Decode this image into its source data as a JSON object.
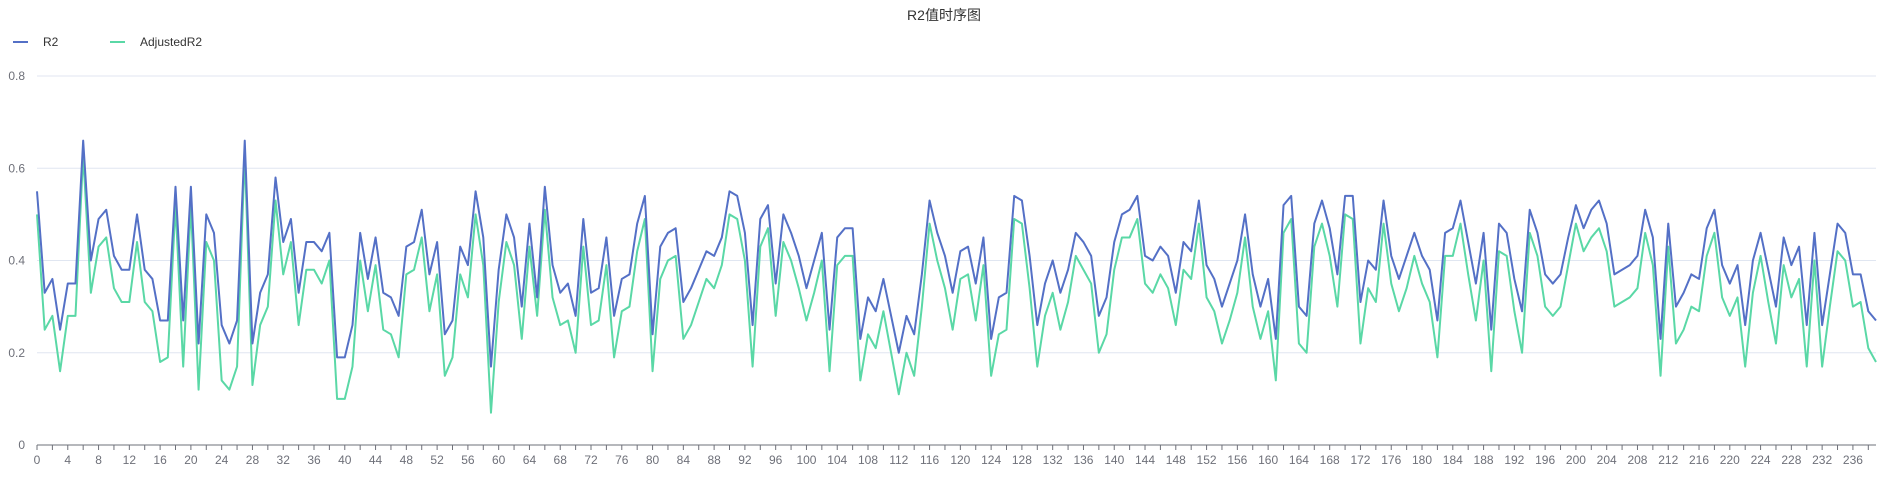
{
  "chart_data": {
    "type": "line",
    "title": "R2值时序图",
    "legend_position": "top-left",
    "grid": true,
    "xlabel": "",
    "ylabel": "",
    "xlim": [
      0,
      239
    ],
    "ylim": [
      0,
      0.8
    ],
    "yticks": [
      0,
      0.2,
      0.4,
      0.6,
      0.8
    ],
    "ytick_labels": [
      "0",
      "0.2",
      "0.4",
      "0.6",
      "0.8"
    ],
    "xticks": [
      0,
      4,
      8,
      12,
      16,
      20,
      24,
      28,
      32,
      36,
      40,
      44,
      48,
      52,
      56,
      60,
      64,
      68,
      72,
      76,
      80,
      84,
      88,
      92,
      96,
      100,
      104,
      108,
      112,
      116,
      120,
      124,
      128,
      132,
      136,
      140,
      144,
      148,
      152,
      156,
      160,
      164,
      168,
      172,
      176,
      180,
      184,
      188,
      192,
      196,
      200,
      204,
      208,
      212,
      216,
      220,
      224,
      228,
      232,
      236
    ],
    "xtick_labels": [
      "0",
      "4",
      "8",
      "12",
      "16",
      "20",
      "24",
      "28",
      "32",
      "36",
      "40",
      "44",
      "48",
      "52",
      "56",
      "60",
      "64",
      "68",
      "72",
      "76",
      "80",
      "84",
      "88",
      "92",
      "96",
      "100",
      "104",
      "108",
      "112",
      "116",
      "120",
      "124",
      "128",
      "132",
      "136",
      "140",
      "144",
      "148",
      "152",
      "156",
      "160",
      "164",
      "168",
      "172",
      "176",
      "180",
      "184",
      "188",
      "192",
      "196",
      "200",
      "204",
      "208",
      "212",
      "216",
      "220",
      "224",
      "228",
      "232",
      "236"
    ],
    "series": [
      {
        "name": "R2",
        "color": "#5470c6",
        "values": [
          0.55,
          0.33,
          0.36,
          0.25,
          0.35,
          0.35,
          0.66,
          0.4,
          0.49,
          0.51,
          0.41,
          0.38,
          0.38,
          0.5,
          0.38,
          0.36,
          0.27,
          0.27,
          0.56,
          0.27,
          0.56,
          0.22,
          0.5,
          0.46,
          0.26,
          0.22,
          0.27,
          0.66,
          0.22,
          0.33,
          0.37,
          0.58,
          0.44,
          0.49,
          0.33,
          0.44,
          0.44,
          0.42,
          0.46,
          0.19,
          0.19,
          0.26,
          0.46,
          0.36,
          0.45,
          0.33,
          0.32,
          0.28,
          0.43,
          0.44,
          0.51,
          0.37,
          0.44,
          0.24,
          0.27,
          0.43,
          0.39,
          0.55,
          0.45,
          0.17,
          0.38,
          0.5,
          0.45,
          0.3,
          0.48,
          0.32,
          0.56,
          0.39,
          0.33,
          0.35,
          0.28,
          0.49,
          0.33,
          0.34,
          0.45,
          0.28,
          0.36,
          0.37,
          0.48,
          0.54,
          0.24,
          0.43,
          0.46,
          0.47,
          0.31,
          0.34,
          0.38,
          0.42,
          0.41,
          0.45,
          0.55,
          0.54,
          0.46,
          0.26,
          0.49,
          0.52,
          0.35,
          0.5,
          0.46,
          0.41,
          0.34,
          0.4,
          0.46,
          0.25,
          0.45,
          0.47,
          0.47,
          0.23,
          0.32,
          0.29,
          0.36,
          0.28,
          0.2,
          0.28,
          0.24,
          0.37,
          0.53,
          0.46,
          0.41,
          0.33,
          0.42,
          0.43,
          0.35,
          0.45,
          0.23,
          0.32,
          0.33,
          0.54,
          0.53,
          0.41,
          0.26,
          0.35,
          0.4,
          0.33,
          0.38,
          0.46,
          0.44,
          0.41,
          0.28,
          0.32,
          0.44,
          0.5,
          0.51,
          0.54,
          0.41,
          0.4,
          0.43,
          0.41,
          0.33,
          0.44,
          0.42,
          0.53,
          0.39,
          0.36,
          0.3,
          0.35,
          0.4,
          0.5,
          0.37,
          0.3,
          0.36,
          0.23,
          0.52,
          0.54,
          0.3,
          0.28,
          0.48,
          0.53,
          0.47,
          0.37,
          0.54,
          0.54,
          0.31,
          0.4,
          0.38,
          0.53,
          0.41,
          0.36,
          0.41,
          0.46,
          0.41,
          0.38,
          0.27,
          0.46,
          0.47,
          0.53,
          0.44,
          0.35,
          0.46,
          0.25,
          0.48,
          0.46,
          0.36,
          0.29,
          0.51,
          0.46,
          0.37,
          0.35,
          0.37,
          0.45,
          0.52,
          0.47,
          0.51,
          0.53,
          0.48,
          0.37,
          0.38,
          0.39,
          0.41,
          0.51,
          0.45,
          0.23,
          0.48,
          0.3,
          0.33,
          0.37,
          0.36,
          0.47,
          0.51,
          0.39,
          0.35,
          0.39,
          0.26,
          0.4,
          0.46,
          0.38,
          0.3,
          0.45,
          0.39,
          0.43,
          0.26,
          0.46,
          0.26,
          0.37,
          0.48,
          0.46,
          0.37,
          0.37,
          0.29,
          0.27
        ]
      },
      {
        "name": "AdjustedR2",
        "color": "#5ad8a6",
        "values": [
          0.5,
          0.25,
          0.28,
          0.16,
          0.28,
          0.28,
          0.63,
          0.33,
          0.43,
          0.45,
          0.34,
          0.31,
          0.31,
          0.44,
          0.31,
          0.29,
          0.18,
          0.19,
          0.52,
          0.17,
          0.52,
          0.12,
          0.44,
          0.4,
          0.14,
          0.12,
          0.17,
          0.63,
          0.13,
          0.26,
          0.3,
          0.53,
          0.37,
          0.44,
          0.26,
          0.38,
          0.38,
          0.35,
          0.4,
          0.1,
          0.1,
          0.17,
          0.4,
          0.29,
          0.39,
          0.25,
          0.24,
          0.19,
          0.37,
          0.38,
          0.45,
          0.29,
          0.37,
          0.15,
          0.19,
          0.37,
          0.32,
          0.5,
          0.39,
          0.07,
          0.31,
          0.44,
          0.39,
          0.23,
          0.43,
          0.28,
          0.51,
          0.32,
          0.26,
          0.27,
          0.2,
          0.43,
          0.26,
          0.27,
          0.39,
          0.19,
          0.29,
          0.3,
          0.42,
          0.49,
          0.16,
          0.36,
          0.4,
          0.41,
          0.23,
          0.26,
          0.31,
          0.36,
          0.34,
          0.39,
          0.5,
          0.49,
          0.4,
          0.17,
          0.43,
          0.47,
          0.28,
          0.44,
          0.4,
          0.34,
          0.27,
          0.33,
          0.4,
          0.16,
          0.39,
          0.41,
          0.41,
          0.14,
          0.24,
          0.21,
          0.29,
          0.2,
          0.11,
          0.2,
          0.15,
          0.3,
          0.48,
          0.4,
          0.34,
          0.25,
          0.36,
          0.37,
          0.27,
          0.39,
          0.15,
          0.24,
          0.25,
          0.49,
          0.48,
          0.34,
          0.17,
          0.28,
          0.33,
          0.25,
          0.31,
          0.41,
          0.38,
          0.35,
          0.2,
          0.24,
          0.38,
          0.45,
          0.45,
          0.49,
          0.35,
          0.33,
          0.37,
          0.34,
          0.26,
          0.38,
          0.36,
          0.48,
          0.32,
          0.29,
          0.22,
          0.27,
          0.33,
          0.45,
          0.3,
          0.23,
          0.29,
          0.14,
          0.46,
          0.49,
          0.22,
          0.2,
          0.43,
          0.48,
          0.41,
          0.3,
          0.5,
          0.49,
          0.22,
          0.34,
          0.31,
          0.48,
          0.35,
          0.29,
          0.34,
          0.41,
          0.35,
          0.31,
          0.19,
          0.41,
          0.41,
          0.48,
          0.37,
          0.27,
          0.4,
          0.16,
          0.42,
          0.41,
          0.29,
          0.2,
          0.46,
          0.41,
          0.3,
          0.28,
          0.3,
          0.39,
          0.48,
          0.42,
          0.45,
          0.47,
          0.42,
          0.3,
          0.31,
          0.32,
          0.34,
          0.46,
          0.39,
          0.15,
          0.43,
          0.22,
          0.25,
          0.3,
          0.29,
          0.41,
          0.46,
          0.32,
          0.28,
          0.32,
          0.17,
          0.33,
          0.41,
          0.31,
          0.22,
          0.39,
          0.32,
          0.36,
          0.17,
          0.4,
          0.17,
          0.3,
          0.42,
          0.4,
          0.3,
          0.31,
          0.21,
          0.18
        ]
      }
    ]
  }
}
